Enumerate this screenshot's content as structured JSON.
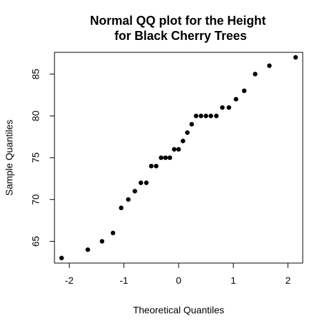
{
  "chart_data": {
    "type": "scatter",
    "title_lines": [
      "Normal QQ plot for the Height",
      "for Black Cherry Trees"
    ],
    "xlabel": "Theoretical Quantiles",
    "ylabel": "Sample Quantiles",
    "xlim": [
      -2.27,
      2.27
    ],
    "ylim": [
      62.4,
      87.6
    ],
    "xticks": [
      -2,
      -1,
      0,
      1,
      2
    ],
    "xtick_labels": [
      "-2",
      "-1",
      "0",
      "1",
      "2"
    ],
    "yticks": [
      65,
      70,
      75,
      80,
      85
    ],
    "ytick_labels": [
      "65",
      "70",
      "75",
      "80",
      "85"
    ],
    "grid": false,
    "legend": "none",
    "point_color": "#000000",
    "points": [
      {
        "x": -2.14,
        "y": 63
      },
      {
        "x": -1.66,
        "y": 64
      },
      {
        "x": -1.4,
        "y": 65
      },
      {
        "x": -1.2,
        "y": 66
      },
      {
        "x": -1.05,
        "y": 69
      },
      {
        "x": -0.92,
        "y": 70
      },
      {
        "x": -0.8,
        "y": 71
      },
      {
        "x": -0.69,
        "y": 72
      },
      {
        "x": -0.59,
        "y": 72
      },
      {
        "x": -0.5,
        "y": 74
      },
      {
        "x": -0.41,
        "y": 74
      },
      {
        "x": -0.32,
        "y": 75
      },
      {
        "x": -0.24,
        "y": 75
      },
      {
        "x": -0.16,
        "y": 75
      },
      {
        "x": -0.08,
        "y": 76
      },
      {
        "x": 0.0,
        "y": 76
      },
      {
        "x": 0.08,
        "y": 77
      },
      {
        "x": 0.16,
        "y": 78
      },
      {
        "x": 0.24,
        "y": 79
      },
      {
        "x": 0.32,
        "y": 80
      },
      {
        "x": 0.41,
        "y": 80
      },
      {
        "x": 0.5,
        "y": 80
      },
      {
        "x": 0.59,
        "y": 80
      },
      {
        "x": 0.69,
        "y": 80
      },
      {
        "x": 0.8,
        "y": 81
      },
      {
        "x": 0.92,
        "y": 81
      },
      {
        "x": 1.05,
        "y": 82
      },
      {
        "x": 1.2,
        "y": 83
      },
      {
        "x": 1.4,
        "y": 85
      },
      {
        "x": 1.66,
        "y": 86
      },
      {
        "x": 2.14,
        "y": 87
      }
    ]
  }
}
